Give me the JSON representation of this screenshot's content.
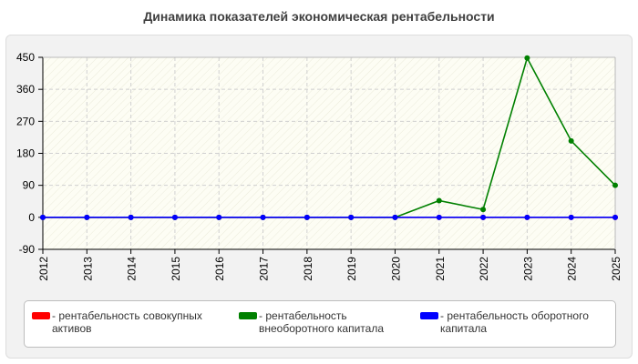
{
  "chart_data": {
    "type": "line",
    "title": "Динамика показателей экономическая рентабельности",
    "categories": [
      "2012",
      "2013",
      "2014",
      "2015",
      "2016",
      "2017",
      "2018",
      "2019",
      "2020",
      "2021",
      "2022",
      "2023",
      "2024",
      "2025"
    ],
    "y_ticks": [
      450,
      360,
      270,
      180,
      90,
      0,
      -90
    ],
    "ylim": [
      -90,
      450
    ],
    "grid": true,
    "legend_placement": "bottom",
    "series": [
      {
        "name": "рентабельность совокупных активов",
        "color": "#ff0000",
        "values": [
          0,
          0,
          0,
          0,
          0,
          0,
          0,
          0,
          0,
          0,
          0,
          0,
          0,
          0
        ]
      },
      {
        "name": "рентабельность внеоборотного капитала",
        "color": "#008000",
        "values": [
          0,
          0,
          0,
          0,
          0,
          0,
          0,
          0,
          0,
          47,
          22,
          448,
          215,
          90
        ]
      },
      {
        "name": "рентабельность оборотного капитала",
        "color": "#0000ff",
        "values": [
          0,
          0,
          0,
          0,
          0,
          0,
          0,
          0,
          0,
          0,
          0,
          0,
          0,
          0
        ]
      }
    ]
  }
}
